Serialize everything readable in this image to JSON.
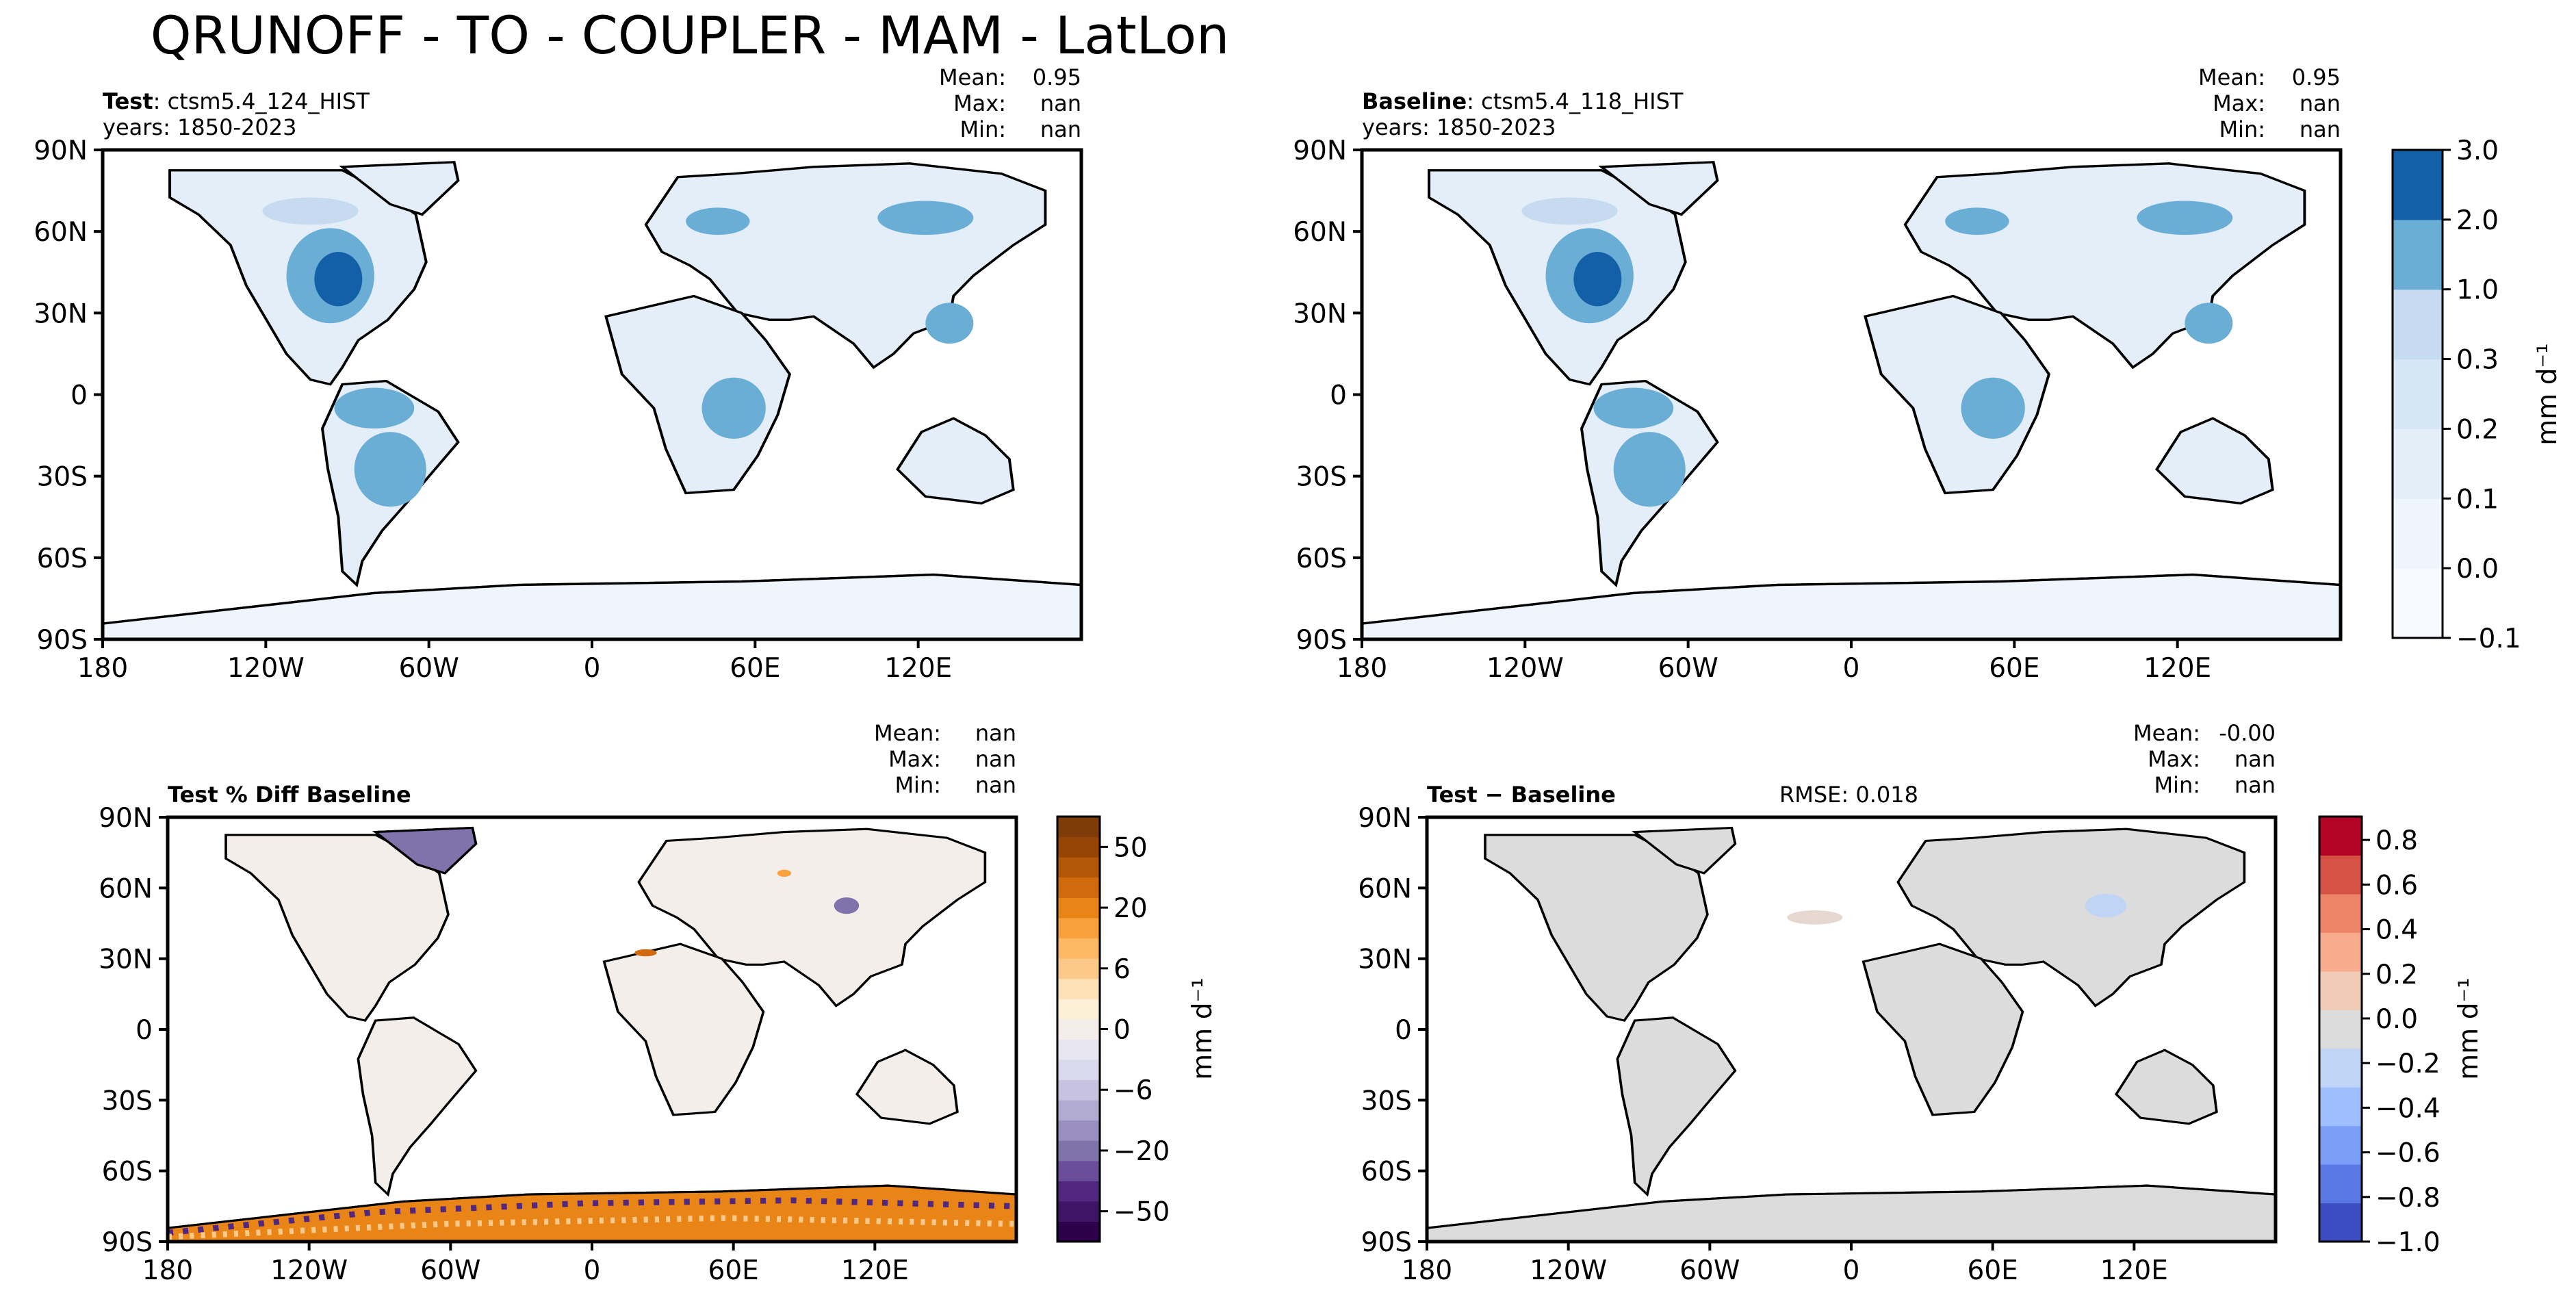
{
  "figure": {
    "title": "QRUNOFF - TO - COUPLER - MAM - LatLon",
    "units": "mm d⁻¹"
  },
  "lon_ticks": [
    "180",
    "120W",
    "60W",
    "0",
    "60E",
    "120E"
  ],
  "lat_ticks": [
    "90N",
    "60N",
    "30N",
    "0",
    "30S",
    "60S",
    "90S"
  ],
  "panels": {
    "test": {
      "label_bold": "Test",
      "label_rest": ": ctsm5.4_124_HIST",
      "years": "years: 1850-2023",
      "stats": {
        "mean_label": "Mean:",
        "mean": "0.95",
        "max_label": "Max:",
        "max": "nan",
        "min_label": "Min:",
        "min": "nan"
      }
    },
    "baseline": {
      "label_bold": "Baseline",
      "label_rest": ": ctsm5.4_118_HIST",
      "years": "years: 1850-2023",
      "stats": {
        "mean_label": "Mean:",
        "mean": "0.95",
        "max_label": "Max:",
        "max": "nan",
        "min_label": "Min:",
        "min": "nan"
      }
    },
    "pctdiff": {
      "label_bold": "Test % Diff Baseline",
      "stats": {
        "mean_label": "Mean:",
        "mean": "nan",
        "max_label": "Max:",
        "max": "nan",
        "min_label": "Min:",
        "min": "nan"
      }
    },
    "diff": {
      "label_bold": "Test − Baseline",
      "rmse": "RMSE: 0.018",
      "stats": {
        "mean_label": "Mean:",
        "mean": "-0.00",
        "max_label": "Max:",
        "max": "nan",
        "min_label": "Min:",
        "min": "nan"
      }
    }
  },
  "colorbars": {
    "runoff": {
      "ticks": [
        "3.0",
        "2.0",
        "1.0",
        "0.3",
        "0.2",
        "0.1",
        "0.0",
        "−0.1"
      ],
      "colors": [
        "#f7fbff",
        "#eef5fc",
        "#e3eef9",
        "#d6e6f4",
        "#c6dbef",
        "#6aaed6",
        "#1460a8"
      ]
    },
    "pctdiff": {
      "ticks": [
        "50",
        "20",
        "6",
        "0",
        "−6",
        "−20",
        "−50"
      ],
      "colors": [
        "#2d004b",
        "#3f1567",
        "#52277f",
        "#6a4e9c",
        "#8073ac",
        "#9a8fc0",
        "#b2abd2",
        "#c6c2df",
        "#d8daeb",
        "#e8e7f1",
        "#f3eeea",
        "#fbefd6",
        "#fee0b6",
        "#fdc98a",
        "#fdb863",
        "#f8a13d",
        "#e98417",
        "#d16a0c",
        "#b35806",
        "#974505",
        "#7f3b08"
      ]
    },
    "diff": {
      "ticks": [
        "0.8",
        "0.6",
        "0.4",
        "0.2",
        "0.0",
        "−0.2",
        "−0.4",
        "−0.6",
        "−0.8",
        "−1.0"
      ],
      "colors": [
        "#3b4cc0",
        "#5a78e4",
        "#7b9ff9",
        "#9ebeff",
        "#c0d4f5",
        "#dddcdc",
        "#f2cbb7",
        "#f7ac8e",
        "#ee8468",
        "#d65244",
        "#b40426"
      ]
    }
  },
  "chart_data": [
    {
      "type": "heatmap",
      "title": "Test",
      "map": "global lat-lon",
      "units": "mm d⁻¹",
      "levels": [
        -0.1,
        0.0,
        0.1,
        0.2,
        0.3,
        1.0,
        2.0,
        3.0
      ],
      "stats": {
        "mean": 0.95,
        "max": "nan",
        "min": "nan"
      },
      "xlim": [
        -180,
        180
      ],
      "ylim": [
        -90,
        90
      ]
    },
    {
      "type": "heatmap",
      "title": "Baseline",
      "map": "global lat-lon",
      "units": "mm d⁻¹",
      "levels": [
        -0.1,
        0.0,
        0.1,
        0.2,
        0.3,
        1.0,
        2.0,
        3.0
      ],
      "stats": {
        "mean": 0.95,
        "max": "nan",
        "min": "nan"
      },
      "xlim": [
        -180,
        180
      ],
      "ylim": [
        -90,
        90
      ]
    },
    {
      "type": "heatmap",
      "title": "Test % Diff Baseline",
      "map": "global lat-lon",
      "units": "mm d⁻¹",
      "colorbar_ticks": [
        -50,
        -20,
        -6,
        0,
        6,
        20,
        50
      ],
      "stats": {
        "mean": "nan",
        "max": "nan",
        "min": "nan"
      },
      "xlim": [
        -180,
        180
      ],
      "ylim": [
        -90,
        90
      ]
    },
    {
      "type": "heatmap",
      "title": "Test − Baseline",
      "map": "global lat-lon",
      "units": "mm d⁻¹",
      "colorbar_ticks": [
        -1.0,
        -0.8,
        -0.6,
        -0.4,
        -0.2,
        0.0,
        0.2,
        0.4,
        0.6,
        0.8
      ],
      "rmse": 0.018,
      "stats": {
        "mean": -0.0,
        "max": "nan",
        "min": "nan"
      },
      "xlim": [
        -180,
        180
      ],
      "ylim": [
        -90,
        90
      ]
    }
  ]
}
